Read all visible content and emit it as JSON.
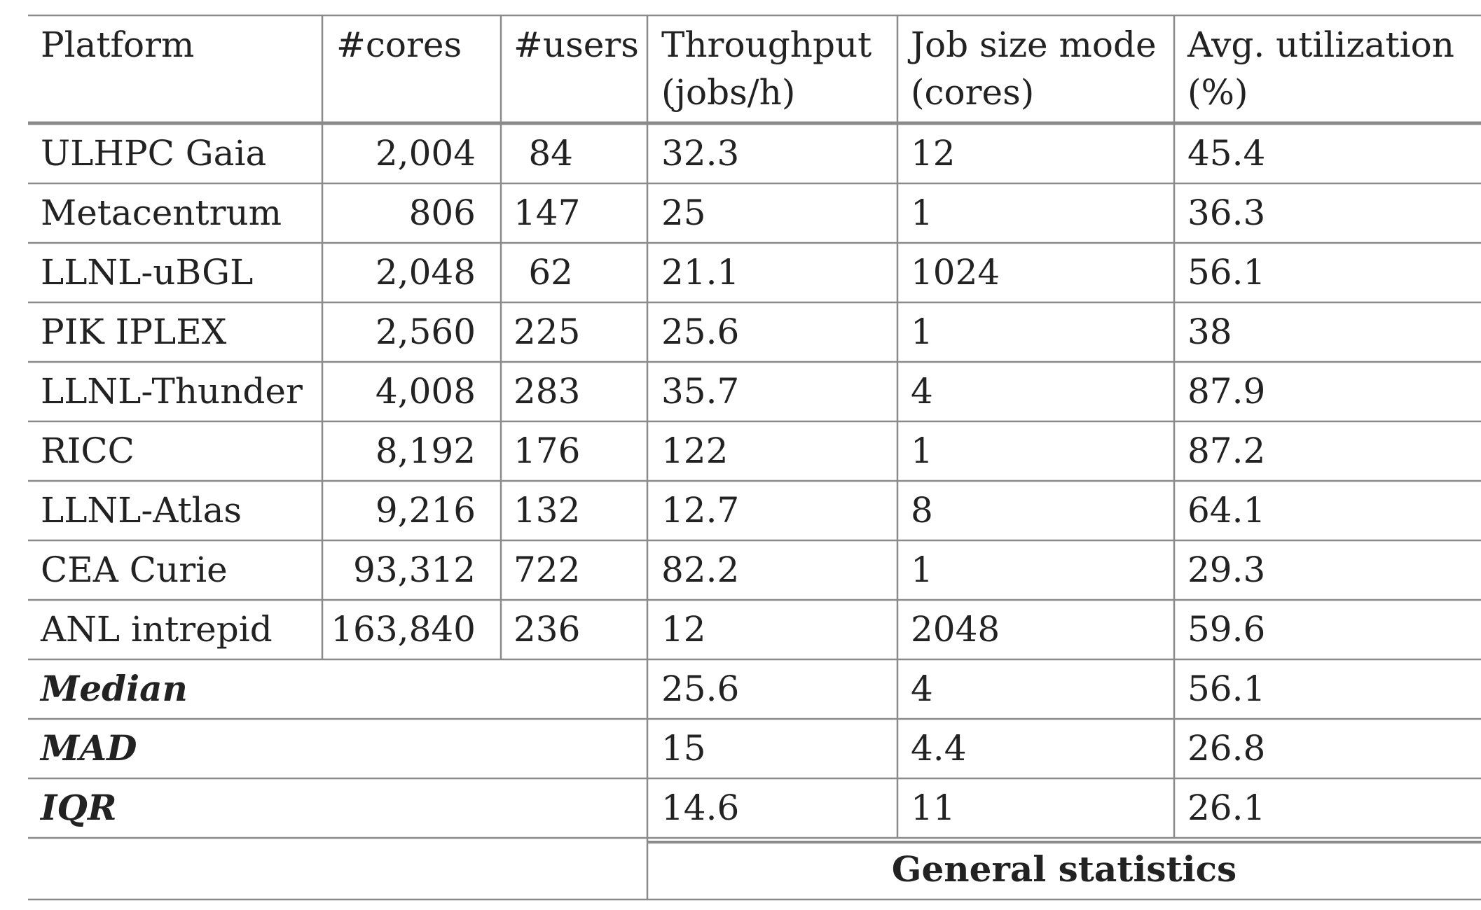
{
  "headers": {
    "platform": "Platform",
    "cores": "#cores",
    "users": "#users",
    "throughput_1": "Throughput",
    "throughput_2": "(jobs/h)",
    "jobsize_1": "Job size mode",
    "jobsize_2": "(cores)",
    "util_1": "Avg. utilization",
    "util_2": "(%)"
  },
  "rows": [
    {
      "platform": "ULHPC Gaia",
      "cores": "2,004",
      "users": "84",
      "throughput": "32.3",
      "jobsize": "12",
      "util": "45.4"
    },
    {
      "platform": "Metacentrum",
      "cores": "806",
      "users": "147",
      "throughput": "25",
      "jobsize": "1",
      "util": "36.3"
    },
    {
      "platform": "LLNL-uBGL",
      "cores": "2,048",
      "users": "62",
      "throughput": "21.1",
      "jobsize": "1024",
      "util": "56.1"
    },
    {
      "platform": "PIK IPLEX",
      "cores": "2,560",
      "users": "225",
      "throughput": "25.6",
      "jobsize": "1",
      "util": "38"
    },
    {
      "platform": "LLNL-Thunder",
      "cores": "4,008",
      "users": "283",
      "throughput": "35.7",
      "jobsize": "4",
      "util": "87.9"
    },
    {
      "platform": "RICC",
      "cores": "8,192",
      "users": "176",
      "throughput": "122",
      "jobsize": "1",
      "util": "87.2"
    },
    {
      "platform": "LLNL-Atlas",
      "cores": "9,216",
      "users": "132",
      "throughput": "12.7",
      "jobsize": "8",
      "util": "64.1"
    },
    {
      "platform": "CEA Curie",
      "cores": "93,312",
      "users": "722",
      "throughput": "82.2",
      "jobsize": "1",
      "util": "29.3"
    },
    {
      "platform": "ANL intrepid",
      "cores": "163,840",
      "users": "236",
      "throughput": "12",
      "jobsize": "2048",
      "util": "59.6"
    }
  ],
  "stats": [
    {
      "label": "Median",
      "throughput": "25.6",
      "jobsize": "4",
      "util": "56.1"
    },
    {
      "label": "MAD",
      "throughput": "15",
      "jobsize": "4.4",
      "util": "26.8"
    },
    {
      "label": "IQR",
      "throughput": "14.6",
      "jobsize": "11",
      "util": "26.1"
    }
  ],
  "caption": "General statistics"
}
